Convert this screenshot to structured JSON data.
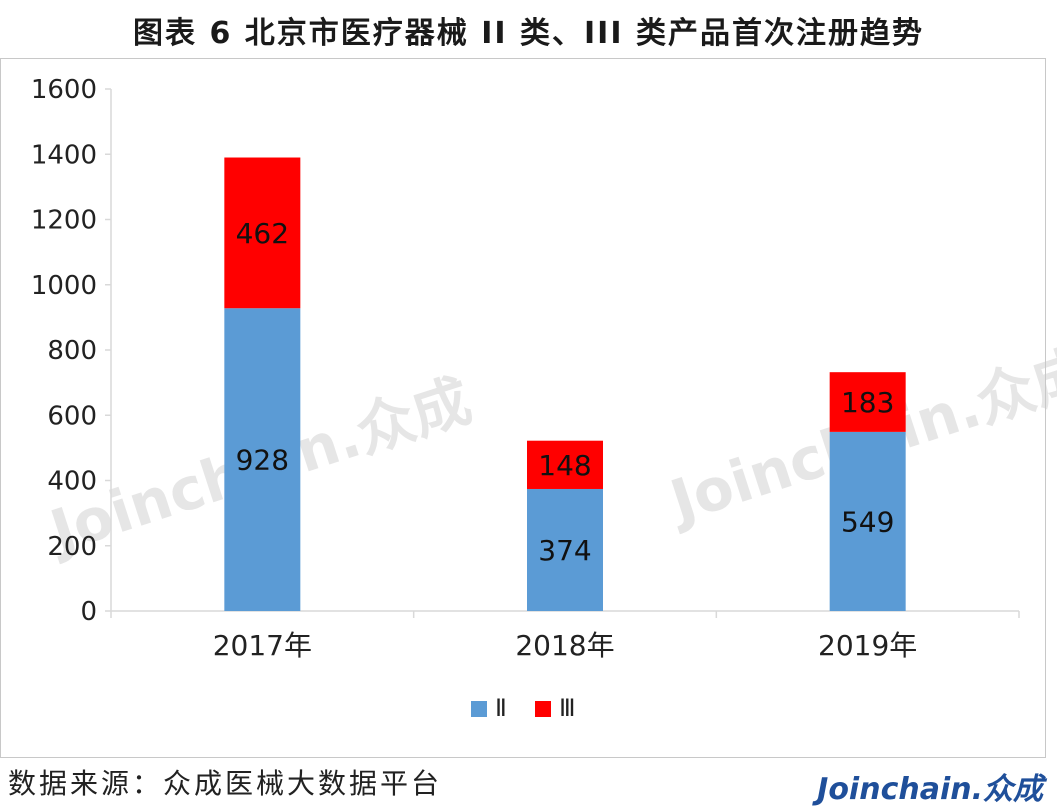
{
  "title": "图表 6   北京市医疗器械 II 类、III 类产品首次注册趋势",
  "source": "数据来源：众成医械大数据平台",
  "logo": "Joinchain.众成",
  "watermark": "Joinchain.众成",
  "colors": {
    "class2": "#5b9bd5",
    "class3": "#ff0000",
    "axis": "#d9d9d9",
    "text": "#222222"
  },
  "chart_data": {
    "type": "bar",
    "stacked": true,
    "categories": [
      "2017年",
      "2018年",
      "2019年"
    ],
    "series": [
      {
        "name": "Ⅱ",
        "values": [
          928,
          374,
          549
        ]
      },
      {
        "name": "Ⅲ",
        "values": [
          462,
          148,
          183
        ]
      }
    ],
    "ylim": [
      0,
      1600
    ],
    "yticks": [
      0,
      200,
      400,
      600,
      800,
      1000,
      1200,
      1400,
      1600
    ],
    "grid": false,
    "legend": "bottom-center"
  }
}
